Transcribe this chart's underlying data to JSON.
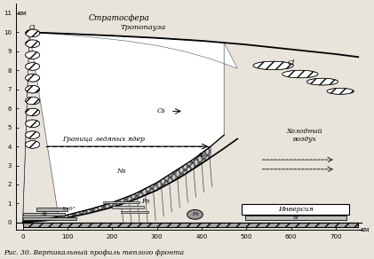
{
  "title": "Рис. 30. Вертикальный профиль теплого фронта",
  "stratosphere_label": "Стратосфера",
  "tropopause_label": "Тропопауза",
  "ice_boundary_label": "Граница ледяных ядер",
  "cold_air_label": "Холодный\nвоздух",
  "inversion_label": "Инверсия",
  "xmax": 750,
  "ymax": 11,
  "bg_color": "#e8e4dc",
  "front_slope": {
    "x": [
      0,
      50,
      100,
      150,
      200,
      250,
      300,
      350,
      400,
      450,
      480
    ],
    "y": [
      0.0,
      0.1,
      0.25,
      0.5,
      0.8,
      1.2,
      1.7,
      2.35,
      3.1,
      3.9,
      4.4
    ]
  },
  "front_slope2": {
    "x": [
      0,
      50,
      100,
      150,
      200,
      250,
      300,
      340,
      380,
      420,
      450
    ],
    "y": [
      0.05,
      0.18,
      0.4,
      0.7,
      1.05,
      1.5,
      2.1,
      2.7,
      3.3,
      4.0,
      4.6
    ]
  },
  "tropopause": {
    "x": [
      15,
      100,
      200,
      300,
      400,
      500,
      600,
      700,
      750
    ],
    "y": [
      10.0,
      9.92,
      9.82,
      9.7,
      9.55,
      9.35,
      9.1,
      8.85,
      8.7
    ]
  },
  "upper_ci_line": {
    "x": [
      15,
      80,
      150,
      230,
      300,
      360,
      420,
      480
    ],
    "y": [
      9.98,
      9.9,
      9.75,
      9.55,
      9.3,
      9.0,
      8.6,
      8.1
    ]
  },
  "cl_line_top": {
    "x": [
      530,
      580,
      630,
      680,
      730,
      750
    ],
    "y": [
      8.5,
      8.3,
      8.0,
      7.6,
      7.2,
      7.0
    ]
  },
  "cl_line_bot": {
    "x": [
      530,
      580,
      630,
      680,
      730,
      750
    ],
    "y": [
      8.0,
      7.8,
      7.5,
      7.1,
      6.7,
      6.5
    ]
  },
  "spike_positions_km": [
    [
      20,
      9.95
    ],
    [
      20,
      9.4
    ],
    [
      20,
      8.8
    ],
    [
      20,
      8.2
    ],
    [
      20,
      7.6
    ],
    [
      20,
      7.0
    ],
    [
      20,
      6.4
    ],
    [
      20,
      5.8
    ],
    [
      20,
      5.2
    ],
    [
      20,
      4.6
    ],
    [
      20,
      4.1
    ]
  ],
  "xticks": [
    0,
    100,
    200,
    300,
    400,
    500,
    600,
    700
  ],
  "yticks": [
    0,
    1,
    2,
    3,
    4,
    5,
    6,
    7,
    8,
    9,
    10,
    11
  ]
}
